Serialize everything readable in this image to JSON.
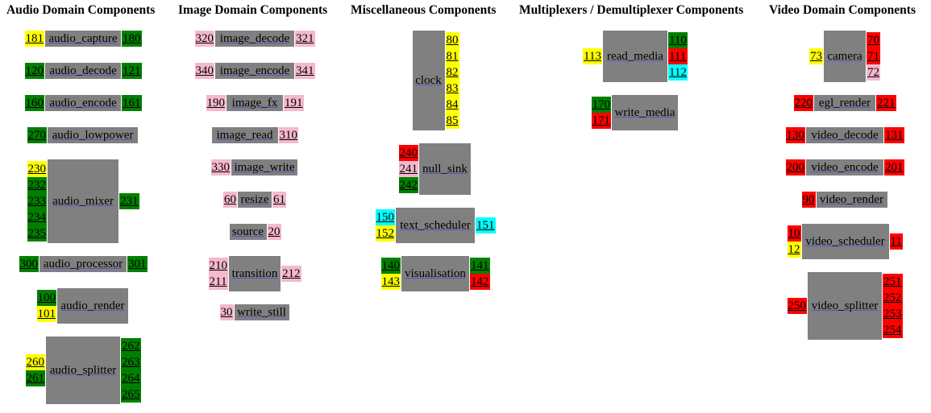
{
  "colors": {
    "green": "#008000",
    "yellow": "#ffff00",
    "pink": "#f5b8cc",
    "red": "#ff0000",
    "cyan": "#00ffff",
    "box": "#808080"
  },
  "columns": [
    {
      "title": "Audio Domain Components",
      "components": [
        {
          "name": "audio_capture",
          "left": [
            {
              "n": "181",
              "c": "yellow"
            }
          ],
          "right": [
            {
              "n": "180",
              "c": "green"
            }
          ]
        },
        {
          "name": "audio_decode",
          "left": [
            {
              "n": "120",
              "c": "green"
            }
          ],
          "right": [
            {
              "n": "121",
              "c": "green"
            }
          ]
        },
        {
          "name": "audio_encode",
          "left": [
            {
              "n": "160",
              "c": "green"
            }
          ],
          "right": [
            {
              "n": "161",
              "c": "green"
            }
          ]
        },
        {
          "name": "audio_lowpower",
          "left": [
            {
              "n": "270",
              "c": "green"
            }
          ],
          "right": []
        },
        {
          "name": "audio_mixer",
          "left": [
            {
              "n": "230",
              "c": "yellow"
            },
            {
              "n": "232",
              "c": "green"
            },
            {
              "n": "233",
              "c": "green"
            },
            {
              "n": "234",
              "c": "green"
            },
            {
              "n": "235",
              "c": "green"
            }
          ],
          "right": [
            {
              "n": "231",
              "c": "green"
            }
          ]
        },
        {
          "name": "audio_processor",
          "left": [
            {
              "n": "300",
              "c": "green"
            }
          ],
          "right": [
            {
              "n": "301",
              "c": "green"
            }
          ]
        },
        {
          "name": "audio_render",
          "left": [
            {
              "n": "100",
              "c": "green"
            },
            {
              "n": "101",
              "c": "yellow"
            }
          ],
          "right": []
        },
        {
          "name": "audio_splitter",
          "left": [
            {
              "n": "260",
              "c": "yellow"
            },
            {
              "n": "261",
              "c": "green"
            }
          ],
          "right": [
            {
              "n": "262",
              "c": "green"
            },
            {
              "n": "263",
              "c": "green"
            },
            {
              "n": "264",
              "c": "green"
            },
            {
              "n": "265",
              "c": "green"
            }
          ]
        }
      ]
    },
    {
      "title": "Image Domain Components",
      "components": [
        {
          "name": "image_decode",
          "left": [
            {
              "n": "320",
              "c": "pink"
            }
          ],
          "right": [
            {
              "n": "321",
              "c": "pink"
            }
          ]
        },
        {
          "name": "image_encode",
          "left": [
            {
              "n": "340",
              "c": "pink"
            }
          ],
          "right": [
            {
              "n": "341",
              "c": "pink"
            }
          ]
        },
        {
          "name": "image_fx",
          "left": [
            {
              "n": "190",
              "c": "pink"
            }
          ],
          "right": [
            {
              "n": "191",
              "c": "pink"
            }
          ]
        },
        {
          "name": "image_read",
          "left": [],
          "right": [
            {
              "n": "310",
              "c": "pink"
            }
          ]
        },
        {
          "name": "image_write",
          "left": [
            {
              "n": "330",
              "c": "pink"
            }
          ],
          "right": []
        },
        {
          "name": "resize",
          "left": [
            {
              "n": "60",
              "c": "pink"
            }
          ],
          "right": [
            {
              "n": "61",
              "c": "pink"
            }
          ]
        },
        {
          "name": "source",
          "left": [],
          "right": [
            {
              "n": "20",
              "c": "pink"
            }
          ]
        },
        {
          "name": "transition",
          "left": [
            {
              "n": "210",
              "c": "pink"
            },
            {
              "n": "211",
              "c": "pink"
            }
          ],
          "right": [
            {
              "n": "212",
              "c": "pink"
            }
          ]
        },
        {
          "name": "write_still",
          "left": [
            {
              "n": "30",
              "c": "pink"
            }
          ],
          "right": []
        }
      ]
    },
    {
      "title": "Miscellaneous Components",
      "components": [
        {
          "name": "clock",
          "left": [],
          "right": [
            {
              "n": "80",
              "c": "yellow"
            },
            {
              "n": "81",
              "c": "yellow"
            },
            {
              "n": "82",
              "c": "yellow"
            },
            {
              "n": "83",
              "c": "yellow"
            },
            {
              "n": "84",
              "c": "yellow"
            },
            {
              "n": "85",
              "c": "yellow"
            }
          ]
        },
        {
          "name": "null_sink",
          "left": [
            {
              "n": "240",
              "c": "red"
            },
            {
              "n": "241",
              "c": "pink"
            },
            {
              "n": "242",
              "c": "green"
            }
          ],
          "right": []
        },
        {
          "name": "text_scheduler",
          "left": [
            {
              "n": "150",
              "c": "cyan"
            },
            {
              "n": "152",
              "c": "yellow"
            }
          ],
          "right": [
            {
              "n": "151",
              "c": "cyan"
            }
          ]
        },
        {
          "name": "visualisation",
          "left": [
            {
              "n": "140",
              "c": "green"
            },
            {
              "n": "143",
              "c": "yellow"
            }
          ],
          "right": [
            {
              "n": "141",
              "c": "green"
            },
            {
              "n": "142",
              "c": "red"
            }
          ]
        }
      ]
    },
    {
      "title": "Multiplexers / Demultiplexer Components",
      "components": [
        {
          "name": "read_media",
          "left": [
            {
              "n": "113",
              "c": "yellow"
            }
          ],
          "right": [
            {
              "n": "110",
              "c": "green"
            },
            {
              "n": "111",
              "c": "red"
            },
            {
              "n": "112",
              "c": "cyan"
            }
          ]
        },
        {
          "name": "write_media",
          "left": [
            {
              "n": "170",
              "c": "green"
            },
            {
              "n": "171",
              "c": "red"
            }
          ],
          "right": []
        }
      ]
    },
    {
      "title": "Video Domain Components",
      "components": [
        {
          "name": "camera",
          "left": [
            {
              "n": "73",
              "c": "yellow"
            }
          ],
          "right": [
            {
              "n": "70",
              "c": "red"
            },
            {
              "n": "71",
              "c": "red"
            },
            {
              "n": "72",
              "c": "pink"
            }
          ]
        },
        {
          "name": "egl_render",
          "left": [
            {
              "n": "220",
              "c": "red"
            }
          ],
          "right": [
            {
              "n": "221",
              "c": "red"
            }
          ]
        },
        {
          "name": "video_decode",
          "left": [
            {
              "n": "130",
              "c": "red"
            }
          ],
          "right": [
            {
              "n": "131",
              "c": "red"
            }
          ]
        },
        {
          "name": "video_encode",
          "left": [
            {
              "n": "200",
              "c": "red"
            }
          ],
          "right": [
            {
              "n": "201",
              "c": "red"
            }
          ]
        },
        {
          "name": "video_render",
          "left": [
            {
              "n": "90",
              "c": "red"
            }
          ],
          "right": []
        },
        {
          "name": "video_scheduler",
          "left": [
            {
              "n": "10",
              "c": "red"
            },
            {
              "n": "12",
              "c": "yellow"
            }
          ],
          "right": [
            {
              "n": "11",
              "c": "red"
            }
          ]
        },
        {
          "name": "video_splitter",
          "left": [
            {
              "n": "250",
              "c": "red"
            }
          ],
          "right": [
            {
              "n": "251",
              "c": "red"
            },
            {
              "n": "252",
              "c": "red"
            },
            {
              "n": "253",
              "c": "red"
            },
            {
              "n": "254",
              "c": "red"
            }
          ]
        }
      ]
    }
  ]
}
